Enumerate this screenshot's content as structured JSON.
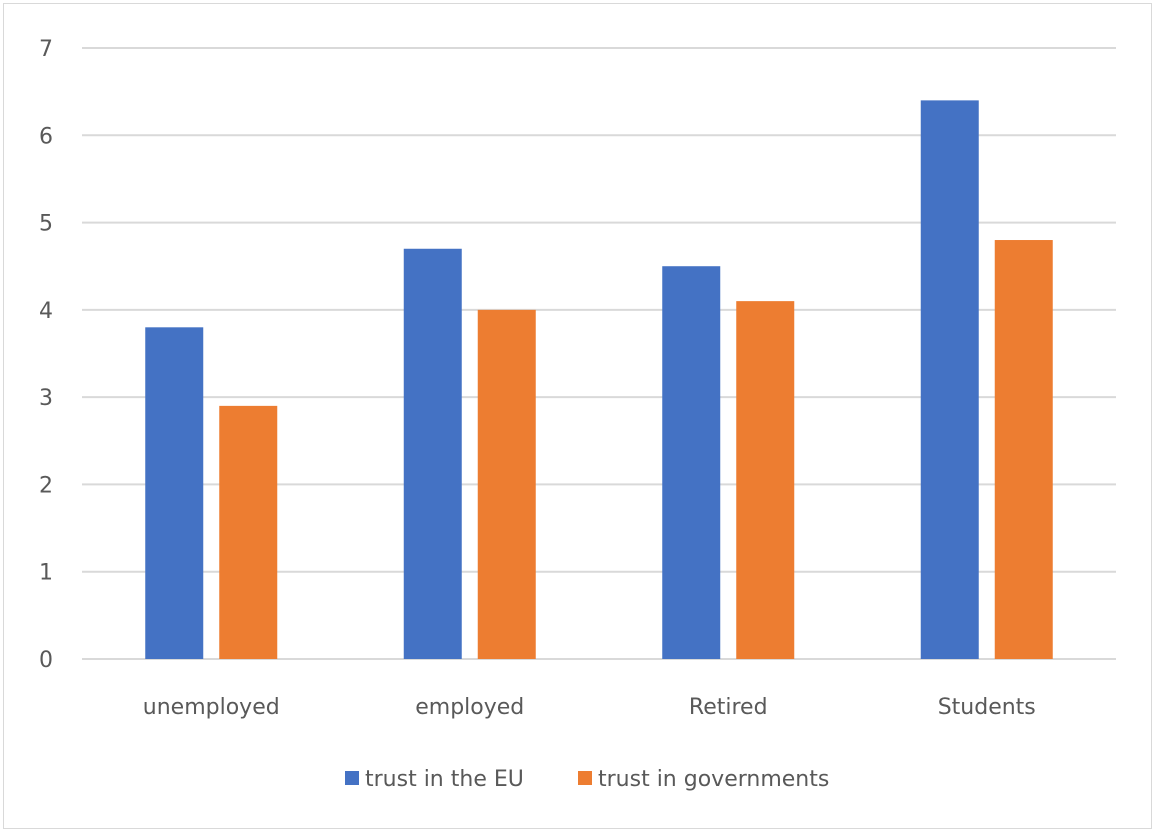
{
  "chart_data": {
    "type": "bar",
    "title": "",
    "xlabel": "",
    "ylabel": "",
    "categories": [
      "unemployed",
      "employed",
      "Retired",
      "Students"
    ],
    "series": [
      {
        "name": "trust in the EU",
        "values": [
          3.8,
          4.7,
          4.5,
          6.4
        ],
        "color": "#4472c4"
      },
      {
        "name": "trust in governments",
        "values": [
          2.9,
          4.0,
          4.1,
          4.8
        ],
        "color": "#ed7d31"
      }
    ],
    "ylim": [
      0,
      7
    ],
    "yticks": [
      0,
      1,
      2,
      3,
      4,
      5,
      6,
      7
    ],
    "grid": true,
    "legend_position": "bottom",
    "gridline_color": "#d9d9d9",
    "text_color": "#595959"
  }
}
